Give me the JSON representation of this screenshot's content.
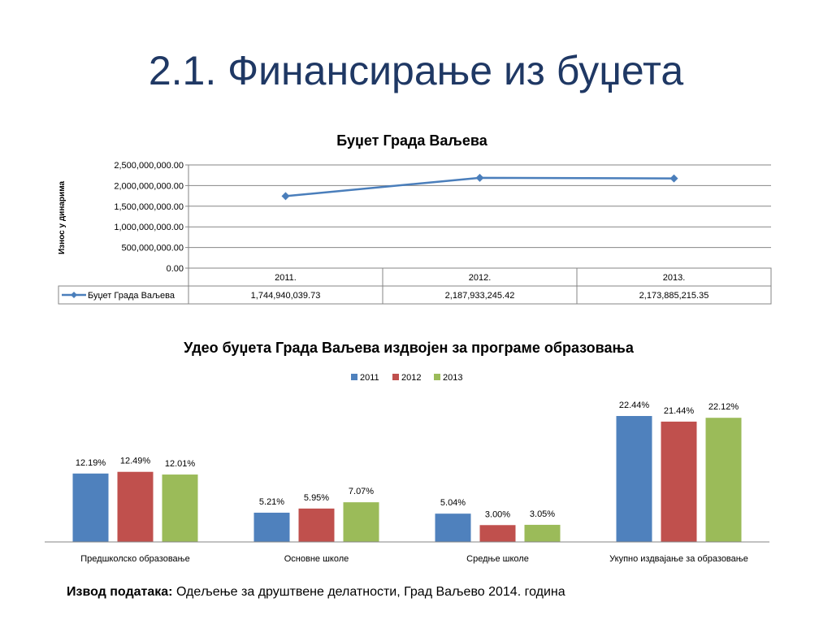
{
  "slide": {
    "title": "2.1. Финансирање из буџета",
    "source_label": "Извод података:",
    "source_text": "Одељење за друштвене делатности, Град Ваљево 2014. година"
  },
  "chart_data": [
    {
      "type": "line",
      "title": "Буџет Града Ваљева",
      "ylabel": "Износ у динарима",
      "xlabel": "",
      "categories": [
        "2011.",
        "2012.",
        "2013."
      ],
      "series": [
        {
          "name": "Буџет Града Ваљева",
          "values": [
            1744940039.73,
            2187933245.42,
            2173885215.35
          ],
          "labels": [
            "1,744,940,039.73",
            "2,187,933,245.42",
            "2,173,885,215.35"
          ],
          "color": "#4a7ebb"
        }
      ],
      "yticks": [
        "0.00",
        "500,000,000.00",
        "1,000,000,000.00",
        "1,500,000,000.00",
        "2,000,000,000.00",
        "2,500,000,000.00"
      ],
      "ylim": [
        0,
        2500000000
      ],
      "grid": true,
      "data_table": true
    },
    {
      "type": "bar",
      "title": "Удео буџета Града Ваљева издвојен за програме образовања",
      "xlabel": "",
      "ylabel": "",
      "categories": [
        "Предшколско образовање",
        "Основне школе",
        "Средње школе",
        "Укупно издвајање за образовање"
      ],
      "series": [
        {
          "name": "2011",
          "values": [
            12.19,
            5.21,
            5.04,
            22.44
          ],
          "labels": [
            "12.19%",
            "5.21%",
            "5.04%",
            "22.44%"
          ],
          "color": "#4f81bd"
        },
        {
          "name": "2012",
          "values": [
            12.49,
            5.95,
            3.0,
            21.44
          ],
          "labels": [
            "12.49%",
            "5.95%",
            "3.00%",
            "21.44%"
          ],
          "color": "#c0504d"
        },
        {
          "name": "2013",
          "values": [
            12.01,
            7.07,
            3.05,
            22.12
          ],
          "labels": [
            "12.01%",
            "7.07%",
            "3.05%",
            "22.12%"
          ],
          "color": "#9bbb59"
        }
      ],
      "ylim": [
        0,
        25
      ],
      "legend": "top-center",
      "grid": false
    }
  ]
}
